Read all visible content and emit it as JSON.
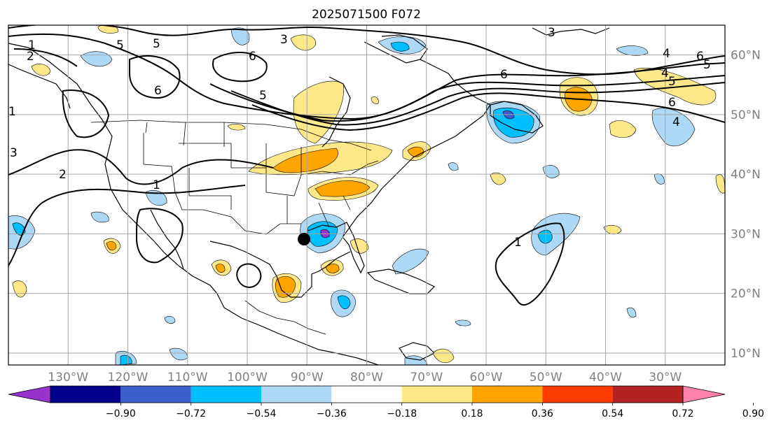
{
  "title": "2025071500 F072",
  "map": {
    "lon_range": [
      -140,
      -20
    ],
    "lat_range": [
      8,
      65
    ],
    "lat_labels": [
      "10°N",
      "20°N",
      "30°N",
      "40°N",
      "50°N",
      "60°N"
    ],
    "lat_values": [
      10,
      20,
      30,
      40,
      50,
      60
    ],
    "lon_labels": [
      "130°W",
      "120°W",
      "110°W",
      "100°W",
      "90°W",
      "80°W",
      "70°W",
      "60°W",
      "50°W",
      "40°W",
      "30°W"
    ],
    "lon_values": [
      -130,
      -120,
      -110,
      -100,
      -90,
      -80,
      -70,
      -60,
      -50,
      -40,
      -30
    ],
    "contour_labels": [
      "1",
      "2",
      "3",
      "4",
      "5",
      "6"
    ],
    "marker_icon": "storm-position-dot"
  },
  "colorbar": {
    "levels": [
      "−0.90",
      "−0.72",
      "−0.54",
      "−0.36",
      "−0.18",
      "0.18",
      "0.36",
      "0.54",
      "0.72",
      "0.90"
    ],
    "colors": [
      "#9933cc",
      "#00008b",
      "#3a5fcd",
      "#00bfff",
      "#add8f6",
      "#ffffff",
      "#ffe88a",
      "#ffa500",
      "#ff3c00",
      "#b22222",
      "#ff82ac"
    ],
    "extend": "both"
  },
  "fill_colors": {
    "neg_light": "#add8f6",
    "neg_mid": "#00bfff",
    "neg_strong": "#3a5fcd",
    "neg_extreme": "#9933cc",
    "pos_light": "#ffe88a",
    "pos_mid": "#ffa500"
  }
}
